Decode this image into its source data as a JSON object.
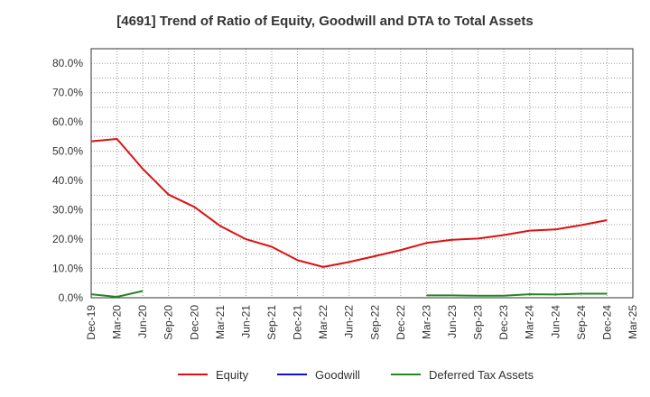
{
  "chart_data": {
    "type": "line",
    "title": "[4691]  Trend of Ratio of Equity, Goodwill and DTA to Total Assets",
    "xlabel": "",
    "ylabel": "",
    "ylim": [
      0,
      85
    ],
    "yticks": [
      0,
      10,
      20,
      30,
      40,
      50,
      60,
      70,
      80
    ],
    "ytick_labels": [
      "0.0%",
      "10.0%",
      "20.0%",
      "30.0%",
      "40.0%",
      "50.0%",
      "60.0%",
      "70.0%",
      "80.0%"
    ],
    "categories": [
      "Dec-19",
      "Mar-20",
      "Jun-20",
      "Sep-20",
      "Dec-20",
      "Mar-21",
      "Jun-21",
      "Sep-21",
      "Dec-21",
      "Mar-22",
      "Jun-22",
      "Sep-22",
      "Dec-22",
      "Mar-23",
      "Jun-23",
      "Sep-23",
      "Dec-23",
      "Mar-24",
      "Jun-24",
      "Sep-24",
      "Dec-24",
      "Mar-25"
    ],
    "grid": true,
    "legend_position": "bottom",
    "series": [
      {
        "name": "Equity",
        "color": "#dd1111",
        "values": [
          53.4,
          54.2,
          44.0,
          35.2,
          31.0,
          24.5,
          20.0,
          17.4,
          12.8,
          10.5,
          12.2,
          14.2,
          16.3,
          18.7,
          19.8,
          20.2,
          21.4,
          22.9,
          23.3,
          24.8,
          26.5,
          null
        ]
      },
      {
        "name": "Goodwill",
        "color": "#1111cc",
        "values": [
          null,
          null,
          null,
          null,
          null,
          null,
          null,
          null,
          null,
          null,
          null,
          null,
          null,
          null,
          null,
          null,
          null,
          null,
          null,
          null,
          null,
          null
        ]
      },
      {
        "name": "Deferred Tax Assets",
        "color": "#228822",
        "values": [
          1.2,
          0.3,
          2.3,
          null,
          null,
          null,
          null,
          null,
          null,
          null,
          null,
          null,
          null,
          0.8,
          0.8,
          0.7,
          0.7,
          1.2,
          1.1,
          1.4,
          1.4,
          null
        ]
      }
    ]
  }
}
